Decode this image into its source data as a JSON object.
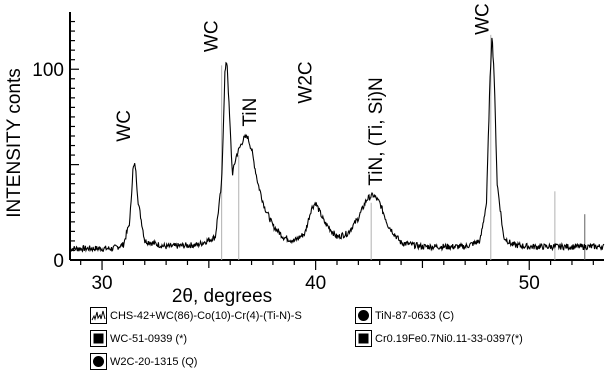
{
  "chart_data": {
    "type": "line",
    "xlabel": "2θ, degrees",
    "ylabel": "INTENSITY conts",
    "xlim": [
      28.5,
      53.5
    ],
    "ylim": [
      0,
      130
    ],
    "xticks": [
      30,
      40,
      50
    ],
    "yticks": [
      0,
      100
    ],
    "series": [
      {
        "name": "CHS-42+WC(86)-Co(10)-Cr(4)-(Ti-N)-S",
        "x": [
          28.5,
          29.5,
          30.5,
          31.0,
          31.3,
          31.45,
          31.55,
          31.7,
          32.0,
          33.0,
          34.5,
          35.3,
          35.6,
          35.75,
          35.85,
          35.95,
          36.1,
          36.3,
          36.6,
          36.8,
          37.0,
          37.3,
          37.6,
          38.0,
          38.5,
          39.0,
          39.5,
          39.8,
          40.0,
          40.4,
          41.0,
          41.5,
          42.0,
          42.4,
          42.7,
          43.0,
          43.4,
          44.0,
          45.0,
          46.0,
          47.0,
          47.7,
          48.0,
          48.15,
          48.25,
          48.35,
          48.5,
          48.8,
          49.2,
          50.0,
          51.0,
          52.0,
          53.0,
          53.5
        ],
        "y": [
          6,
          6,
          6,
          8,
          20,
          48,
          50,
          30,
          10,
          7,
          8,
          12,
          40,
          98,
          105,
          80,
          45,
          55,
          63,
          65,
          58,
          40,
          28,
          18,
          12,
          10,
          14,
          27,
          30,
          20,
          12,
          14,
          22,
          32,
          34,
          30,
          18,
          9,
          7,
          7,
          7,
          10,
          30,
          90,
          118,
          100,
          40,
          12,
          8,
          7,
          7,
          7,
          7,
          7
        ]
      }
    ],
    "reference_lines": [
      {
        "x": 35.6,
        "height": 102,
        "color": "#b0b0b0"
      },
      {
        "x": 36.4,
        "height": 55,
        "color": "#b0b0b0"
      },
      {
        "x": 42.6,
        "height": 30,
        "color": "#b0b0b0"
      },
      {
        "x": 48.2,
        "height": 118,
        "color": "#b0b0b0"
      },
      {
        "x": 51.2,
        "height": 36,
        "color": "#b0b0b0"
      },
      {
        "x": 52.6,
        "height": 24,
        "color": "#606060"
      }
    ],
    "annotations": [
      {
        "text": "WC",
        "x": 31.3,
        "y": 62
      },
      {
        "text": "WC",
        "x": 35.4,
        "y": 109
      },
      {
        "text": "TiN",
        "x": 37.2,
        "y": 70
      },
      {
        "text": "W2C",
        "x": 39.8,
        "y": 82
      },
      {
        "text": "TiN, (Ti, Si)N",
        "x": 43.1,
        "y": 39
      },
      {
        "text": "WC",
        "x": 48.1,
        "y": 118
      }
    ],
    "legend": [
      {
        "label": "CHS-42+WC(86)-Co(10)-Cr(4)-(Ti-N)-S",
        "icon": "wave-icon"
      },
      {
        "label": "TiN-87-0633 (C)",
        "icon": "circle-icon"
      },
      {
        "label": "WC-51-0939 (*)",
        "icon": "square-icon"
      },
      {
        "label": "Cr0.19Fe0.7Ni0.11-33-0397(*)",
        "icon": "square-icon"
      },
      {
        "label": "W2C-20-1315 (Q)",
        "icon": "circle-icon"
      }
    ],
    "legend_position": "bottom",
    "grid": false,
    "line_color": "#000000"
  }
}
